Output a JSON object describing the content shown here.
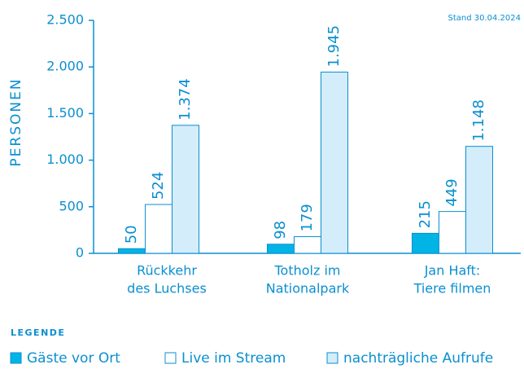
{
  "chart_data": {
    "type": "bar",
    "y_label": "PERSONEN",
    "note": "Stand 30.04.2024",
    "legend_title": "LEGENDE",
    "categories": [
      [
        "Rückkehr",
        "des Luchses"
      ],
      [
        "Totholz im",
        "Nationalpark"
      ],
      [
        "Jan Haft:",
        "Tiere filmen"
      ]
    ],
    "series": [
      {
        "name": "Gäste vor Ort",
        "color": "#00b4e6",
        "values": [
          50,
          98,
          215
        ],
        "value_labels": [
          "50",
          "98",
          "215"
        ]
      },
      {
        "name": "Live im Stream",
        "color": "#ffffff",
        "values": [
          524,
          179,
          449
        ],
        "value_labels": [
          "524",
          "179",
          "449"
        ]
      },
      {
        "name": "nachträgliche Aufrufe",
        "color": "#d3edfa",
        "values": [
          1374,
          1945,
          1148
        ],
        "value_labels": [
          "1.374",
          "1.945",
          "1.148"
        ]
      }
    ],
    "ylim": [
      0,
      2500
    ],
    "yticks": [
      0,
      500,
      {
        "value": 1000,
        "label": "1.000"
      },
      {
        "value": 1500,
        "label": "1.500"
      },
      {
        "value": 2000,
        "label": "2.000"
      },
      {
        "value": 2500,
        "label": "2.500"
      }
    ]
  }
}
